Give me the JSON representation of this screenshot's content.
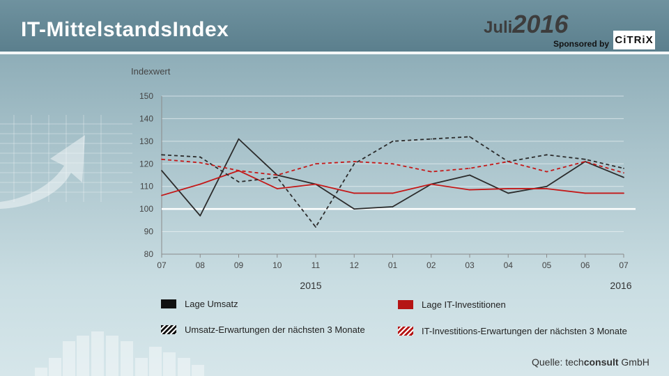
{
  "header": {
    "title": "IT-MittelstandsIndex",
    "month": "Juli",
    "year": "2016",
    "sponsored_by": "Sponsored by",
    "sponsor_logo": "CiTRiX"
  },
  "colors": {
    "umsatz": "#2b2b2b",
    "it_invest": "#c41818",
    "baseline": "#ffffff"
  },
  "chart_data": {
    "type": "line",
    "ylabel": "Indexwert",
    "ylim": [
      80,
      150
    ],
    "yticks": [
      80,
      90,
      100,
      110,
      120,
      130,
      140,
      150
    ],
    "categories": [
      "07",
      "08",
      "09",
      "10",
      "11",
      "12",
      "01",
      "02",
      "03",
      "04",
      "05",
      "06",
      "07"
    ],
    "year_labels": [
      "2015",
      "2016"
    ],
    "reference_line": 100,
    "grid": true,
    "series": [
      {
        "name": "Lage Umsatz",
        "style": "solid",
        "color": "#2b2b2b",
        "values": [
          117,
          97,
          131,
          115,
          111,
          100,
          101,
          111,
          115,
          107,
          110,
          121,
          114
        ]
      },
      {
        "name": "Lage IT-Investitionen",
        "style": "solid",
        "color": "#c41818",
        "values": [
          106,
          111,
          117,
          109,
          111,
          107,
          107,
          111,
          108.5,
          109,
          109,
          107,
          107
        ]
      },
      {
        "name": "Umsatz-Erwartungen  der nächsten 3 Monate",
        "style": "dashed",
        "color": "#2b2b2b",
        "values": [
          124,
          123,
          112,
          114,
          92,
          120,
          130,
          131,
          132,
          121,
          124,
          122,
          118
        ]
      },
      {
        "name": "IT-Investitions-Erwartungen der nächsten 3 Monate",
        "style": "dashed",
        "color": "#c41818",
        "values": [
          122,
          120.5,
          117,
          115,
          120,
          121,
          120,
          116.5,
          118,
          121,
          116.5,
          121,
          116
        ]
      }
    ]
  },
  "source": {
    "prefix": "Quelle:",
    "brand_light": "tech",
    "brand_bold": "consult",
    "suffix": "GmbH"
  }
}
